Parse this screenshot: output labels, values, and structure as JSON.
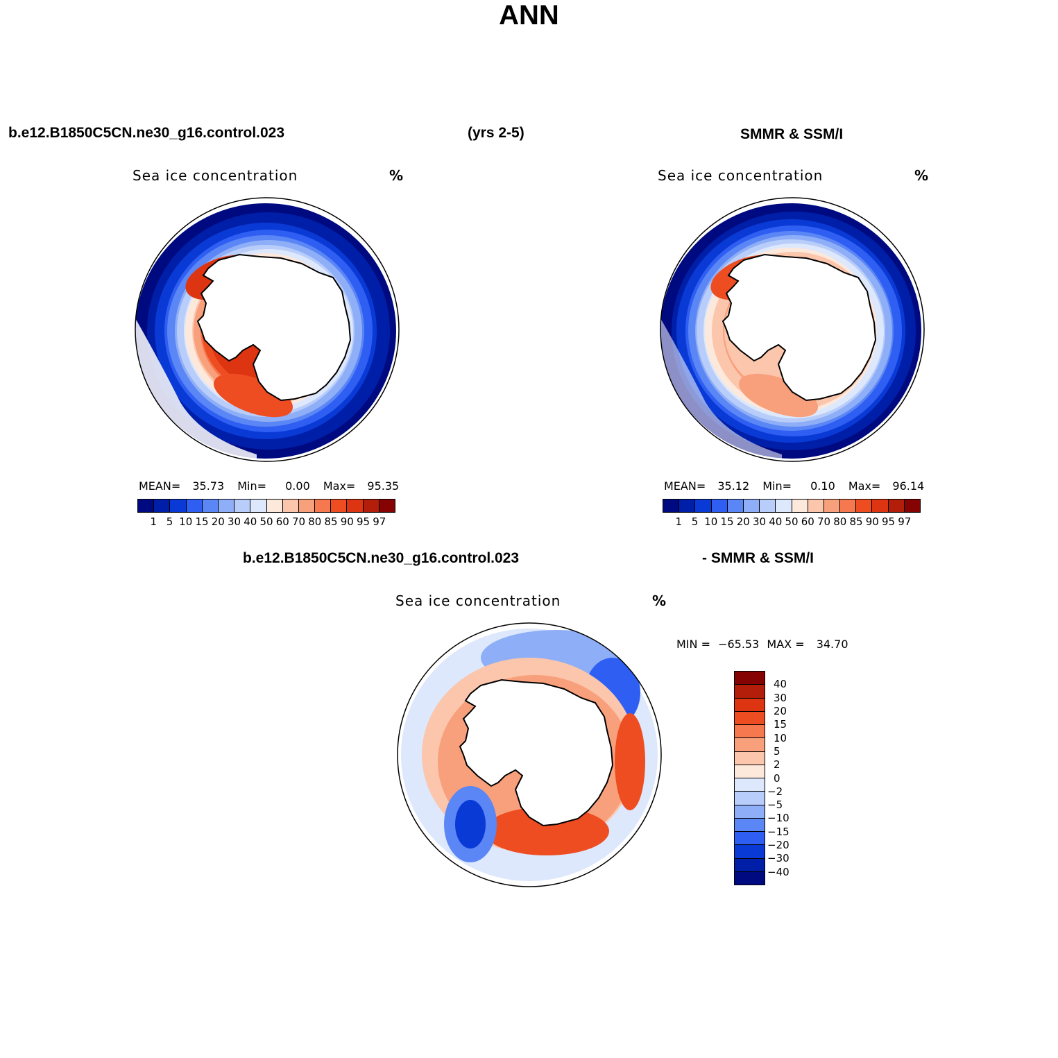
{
  "figure": {
    "title": "ANN",
    "top_left_header": "b.e12.B1850C5CN.ne30_g16.control.023",
    "top_center_header": "(yrs 2-5)",
    "top_right_header": "SMMR & SSM/I",
    "bottom_left_header": "b.e12.B1850C5CN.ne30_g16.control.023",
    "bottom_right_header": "- SMMR & SSM/I"
  },
  "chart_data": [
    {
      "type": "polar-map",
      "hemisphere": "south",
      "variable": "Sea ice concentration",
      "units": "%",
      "source": "b.e12.B1850C5CN.ne30_g16.control.023",
      "stats": {
        "mean_label": "MEAN=",
        "mean": "35.73",
        "min_label": "Min=",
        "min": "0.00",
        "max_label": "Max=",
        "max": "95.35"
      },
      "colorbar_levels": [
        "1",
        "5",
        "10",
        "15",
        "20",
        "30",
        "40",
        "50",
        "60",
        "70",
        "80",
        "85",
        "90",
        "95",
        "97"
      ]
    },
    {
      "type": "polar-map",
      "hemisphere": "south",
      "variable": "Sea ice concentration",
      "units": "%",
      "source": "SMMR & SSM/I",
      "stats": {
        "mean_label": "MEAN=",
        "mean": "35.12",
        "min_label": "Min=",
        "min": "0.10",
        "max_label": "Max=",
        "max": "96.14"
      },
      "colorbar_levels": [
        "1",
        "5",
        "10",
        "15",
        "20",
        "30",
        "40",
        "50",
        "60",
        "70",
        "80",
        "85",
        "90",
        "95",
        "97"
      ]
    },
    {
      "type": "polar-map-difference",
      "hemisphere": "south",
      "variable": "Sea ice concentration",
      "units": "%",
      "stats": {
        "min_label": "MIN =",
        "min": "−65.53",
        "max_label": "MAX =",
        "max": "34.70"
      },
      "colorbar_levels": [
        "40",
        "30",
        "20",
        "15",
        "10",
        "5",
        "2",
        "0",
        "−2",
        "−5",
        "−10",
        "−15",
        "−20",
        "−30",
        "−40"
      ]
    }
  ],
  "colors": {
    "conc_palette": [
      "#000a80",
      "#001fa8",
      "#0a3ad6",
      "#2f5ff2",
      "#5b86f5",
      "#8eaef7",
      "#b8cdf9",
      "#dde8fc",
      "#fde8dc",
      "#fbc6ac",
      "#f8a07c",
      "#f5784e",
      "#ee4d22",
      "#dd3511",
      "#b21e0a",
      "#860303"
    ],
    "diff_palette": [
      "#860303",
      "#b21e0a",
      "#dd3511",
      "#ee4d22",
      "#f5784e",
      "#f8a07c",
      "#fbc6ac",
      "#fde8dc",
      "#dde8fc",
      "#b8cdf9",
      "#8eaef7",
      "#5b86f5",
      "#2f5ff2",
      "#0a3ad6",
      "#001fa8",
      "#000a80"
    ]
  }
}
